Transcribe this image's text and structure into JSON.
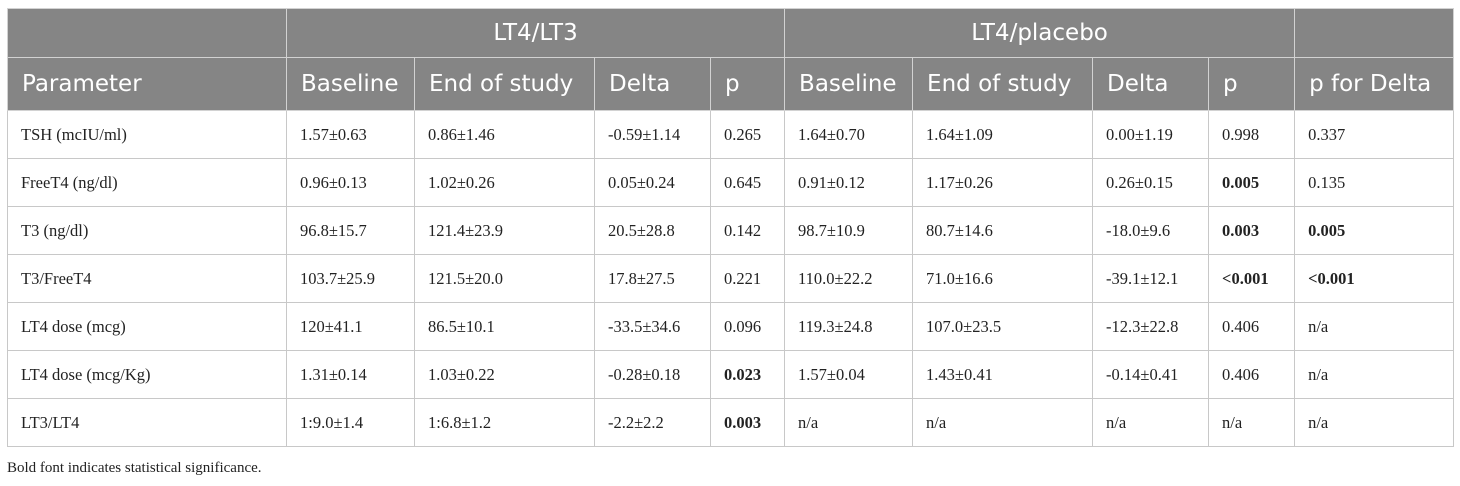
{
  "table": {
    "groups": {
      "empty": "",
      "lt4_lt3": "LT4/LT3",
      "lt4_placebo": "LT4/placebo",
      "tail": ""
    },
    "columns": [
      "Parameter",
      "Baseline",
      "End of study",
      "Delta",
      "p",
      "Baseline",
      "End of study",
      "Delta",
      "p",
      "p for Delta"
    ],
    "rows": [
      [
        "TSH (mcIU/ml)",
        "1.57±0.63",
        "0.86±1.46",
        "-0.59±1.14",
        "0.265",
        "1.64±0.70",
        "1.64±1.09",
        "0.00±1.19",
        "0.998",
        "0.337"
      ],
      [
        "FreeT4 (ng/dl)",
        "0.96±0.13",
        "1.02±0.26",
        "0.05±0.24",
        "0.645",
        "0.91±0.12",
        "1.17±0.26",
        "0.26±0.15",
        "0.005",
        "0.135"
      ],
      [
        "T3 (ng/dl)",
        "96.8±15.7",
        "121.4±23.9",
        "20.5±28.8",
        "0.142",
        "98.7±10.9",
        "80.7±14.6",
        "-18.0±9.6",
        "0.003",
        "0.005"
      ],
      [
        "T3/FreeT4",
        "103.7±25.9",
        "121.5±20.0",
        "17.8±27.5",
        "0.221",
        "110.0±22.2",
        "71.0±16.6",
        "-39.1±12.1",
        "<0.001",
        "<0.001"
      ],
      [
        "LT4 dose (mcg)",
        "120±41.1",
        "86.5±10.1",
        "-33.5±34.6",
        "0.096",
        "119.3±24.8",
        "107.0±23.5",
        "-12.3±22.8",
        "0.406",
        "n/a"
      ],
      [
        "LT4 dose (mcg/Kg)",
        "1.31±0.14",
        "1.03±0.22",
        "-0.28±0.18",
        "0.023",
        "1.57±0.04",
        "1.43±0.41",
        "-0.14±0.41",
        "0.406",
        "n/a"
      ],
      [
        "LT3/LT4",
        "1:9.0±1.4",
        "1:6.8±1.2",
        "-2.2±2.2",
        "0.003",
        "n/a",
        "n/a",
        "n/a",
        "n/a",
        "n/a"
      ]
    ],
    "bold_cells": [
      [
        1,
        8
      ],
      [
        2,
        8
      ],
      [
        2,
        9
      ],
      [
        3,
        8
      ],
      [
        3,
        9
      ],
      [
        5,
        4
      ],
      [
        6,
        4
      ]
    ]
  },
  "footnote": "Bold font indicates statistical significance."
}
